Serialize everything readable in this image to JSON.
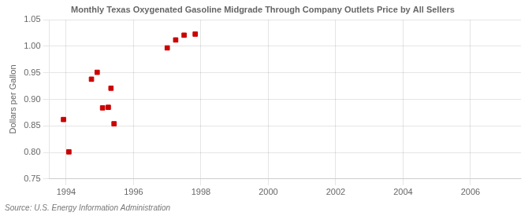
{
  "chart_data": {
    "type": "scatter",
    "title": "Monthly Texas Oxygenated Gasoline Midgrade Through Company Outlets Price by All Sellers",
    "ylabel": "Dollars per Gallon",
    "annotation": "Source: U.S. Energy Information Administration",
    "x": [
      1993.92,
      1994.08,
      1994.75,
      1994.92,
      1995.08,
      1995.25,
      1995.33,
      1995.42,
      1997.0,
      1997.25,
      1997.5,
      1997.83
    ],
    "values": [
      0.862,
      0.801,
      0.938,
      0.951,
      0.884,
      0.885,
      0.921,
      0.854,
      0.997,
      1.012,
      1.021,
      1.023
    ],
    "color": "#cc0000",
    "marker": "square",
    "xlim": [
      1993.5,
      2007.5
    ],
    "ylim": [
      0.75,
      1.05
    ],
    "xticks": [
      1994,
      1996,
      1998,
      2000,
      2002,
      2004,
      2006
    ],
    "yticks": [
      0.75,
      {
        "value": 0.8,
        "label": "0.80"
      },
      0.85,
      {
        "value": 0.9,
        "label": "0.90"
      },
      0.95,
      {
        "value": 1,
        "label": "1.00"
      },
      1.05
    ],
    "grid": true
  }
}
